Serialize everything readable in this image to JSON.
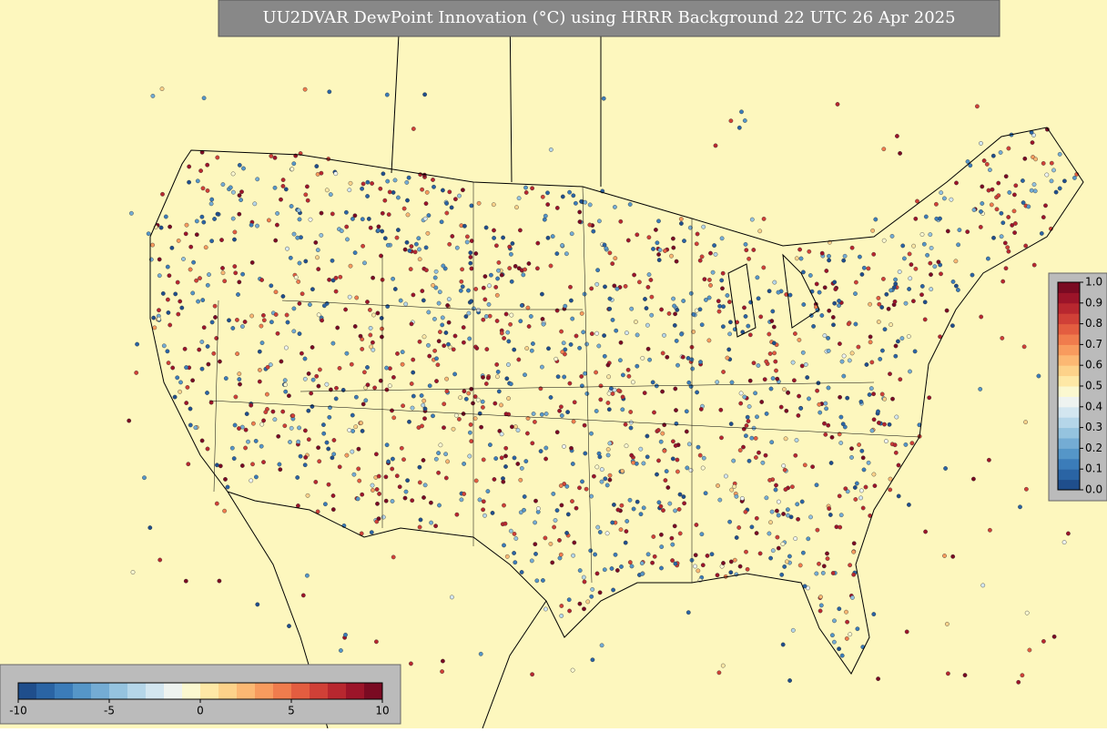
{
  "title": "UU2DVAR DewPoint Innovation (°C) using HRRR Background 22 UTC 26 Apr 2025",
  "palette": [
    "#1f4e8c",
    "#2a64a4",
    "#3b7cb9",
    "#5596c8",
    "#74acd4",
    "#95c3df",
    "#b5d6e9",
    "#d3e6f0",
    "#eef3f0",
    "#fbf8d0",
    "#fee8a6",
    "#fdd28a",
    "#fcb873",
    "#f89b5e",
    "#f07c4d",
    "#e35d40",
    "#d04037",
    "#b8272f",
    "#9c1429",
    "#7a0a22"
  ],
  "innovation_colorbar": {
    "lim": [
      -10,
      10
    ],
    "ticks": [
      -10,
      -5,
      0,
      5,
      10
    ]
  },
  "weight_colorbar": {
    "lim": [
      0,
      1
    ],
    "ticks": [
      {
        "value": 0,
        "label": "0.0"
      },
      0.1,
      0.2,
      0.3,
      0.4,
      0.5,
      0.6,
      0.7,
      0.8,
      0.9,
      {
        "value": 1,
        "label": "1.0"
      }
    ]
  }
}
